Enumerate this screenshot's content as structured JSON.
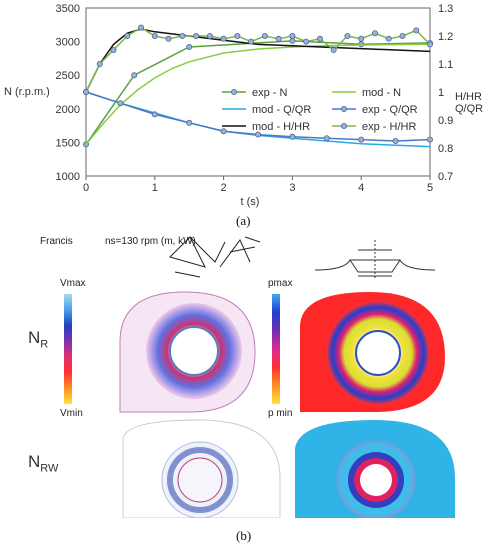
{
  "chart_data": {
    "type": "line",
    "title": "",
    "xlabel": "t (s)",
    "ylabel_left": "N (r.p.m.)",
    "ylabel_right": [
      "H/HR",
      "Q/QR"
    ],
    "xlim": [
      0,
      5
    ],
    "ylim_left": [
      1000,
      3500
    ],
    "ylim_right": [
      0.7,
      1.3
    ],
    "xticks": [
      "0",
      "1",
      "2",
      "3",
      "4",
      "5"
    ],
    "yticks_left": [
      "1000",
      "1500",
      "2000",
      "2500",
      "3000",
      "3500"
    ],
    "yticks_right": [
      "0.7",
      "0.8",
      "0.9",
      "1",
      "1.1",
      "1.2",
      "1.3"
    ],
    "grid": false,
    "legend": "center-right",
    "series": [
      {
        "name": "exp - N",
        "axis": "left",
        "color": "#5aa040",
        "marker": true,
        "x": [
          0,
          0.7,
          1.5,
          3.0,
          4.0,
          5.0
        ],
        "y": [
          1470,
          2500,
          2920,
          3010,
          2960,
          2980
        ]
      },
      {
        "name": "mod - N",
        "axis": "left",
        "color": "#88cc44",
        "marker": false,
        "x": [
          0,
          0.25,
          0.5,
          0.75,
          1.0,
          1.25,
          1.5,
          2.0,
          2.5,
          3.0,
          3.5,
          4.0,
          4.5,
          5.0
        ],
        "y": [
          1470,
          1780,
          2060,
          2280,
          2460,
          2600,
          2700,
          2830,
          2890,
          2920,
          2940,
          2950,
          2955,
          2960
        ]
      },
      {
        "name": "mod - Q/QR",
        "axis": "right",
        "color": "#2aa8e0",
        "marker": false,
        "x": [
          0,
          0.5,
          1.0,
          1.5,
          2.0,
          2.5,
          3.0,
          3.5,
          4.0,
          4.5,
          5.0
        ],
        "y": [
          1.0,
          0.96,
          0.925,
          0.89,
          0.86,
          0.845,
          0.835,
          0.825,
          0.815,
          0.81,
          0.805
        ]
      },
      {
        "name": "exp - Q/QR",
        "axis": "right",
        "color": "#4a78c8",
        "marker": true,
        "x": [
          0,
          0.5,
          1.0,
          1.5,
          2.0,
          2.5,
          3.0,
          3.5,
          4.0,
          4.5,
          5.0
        ],
        "y": [
          1.0,
          0.96,
          0.92,
          0.89,
          0.86,
          0.848,
          0.84,
          0.835,
          0.83,
          0.825,
          0.83
        ]
      },
      {
        "name": "mod - H/HR",
        "axis": "right",
        "color": "#111111",
        "marker": false,
        "x": [
          0,
          0.2,
          0.4,
          0.6,
          0.8,
          1.0,
          1.5,
          2.0,
          2.5,
          3.0,
          3.5,
          4.0,
          4.5,
          5.0
        ],
        "y": [
          1.0,
          1.1,
          1.17,
          1.21,
          1.225,
          1.215,
          1.2,
          1.185,
          1.17,
          1.165,
          1.16,
          1.155,
          1.15,
          1.145
        ]
      },
      {
        "name": "exp - H/HR",
        "axis": "right",
        "color": "#7ab648",
        "marker": true,
        "x": [
          0,
          0.2,
          0.4,
          0.6,
          0.8,
          1.0,
          1.2,
          1.4,
          1.6,
          1.8,
          2.0,
          2.2,
          2.4,
          2.6,
          2.8,
          3.0,
          3.2,
          3.4,
          3.6,
          3.8,
          4.0,
          4.2,
          4.4,
          4.6,
          4.8,
          5.0
        ],
        "y": [
          1.0,
          1.1,
          1.15,
          1.2,
          1.23,
          1.2,
          1.19,
          1.2,
          1.2,
          1.2,
          1.19,
          1.2,
          1.18,
          1.2,
          1.19,
          1.2,
          1.18,
          1.19,
          1.15,
          1.2,
          1.19,
          1.21,
          1.19,
          1.2,
          1.22,
          1.17
        ]
      }
    ]
  },
  "captions": {
    "a": "(a)",
    "b": "(b)"
  },
  "lower": {
    "heading_left": "Francis",
    "heading_right": "ns=130 rpm (m, kW)",
    "row1_main": "N",
    "row1_sub": "R",
    "row2_main": "N",
    "row2_sub": "RW",
    "left_bar_top": "Vmax",
    "left_bar_bottom": "Vmin",
    "right_bar_top": "pmax",
    "right_bar_bottom": "p min"
  }
}
